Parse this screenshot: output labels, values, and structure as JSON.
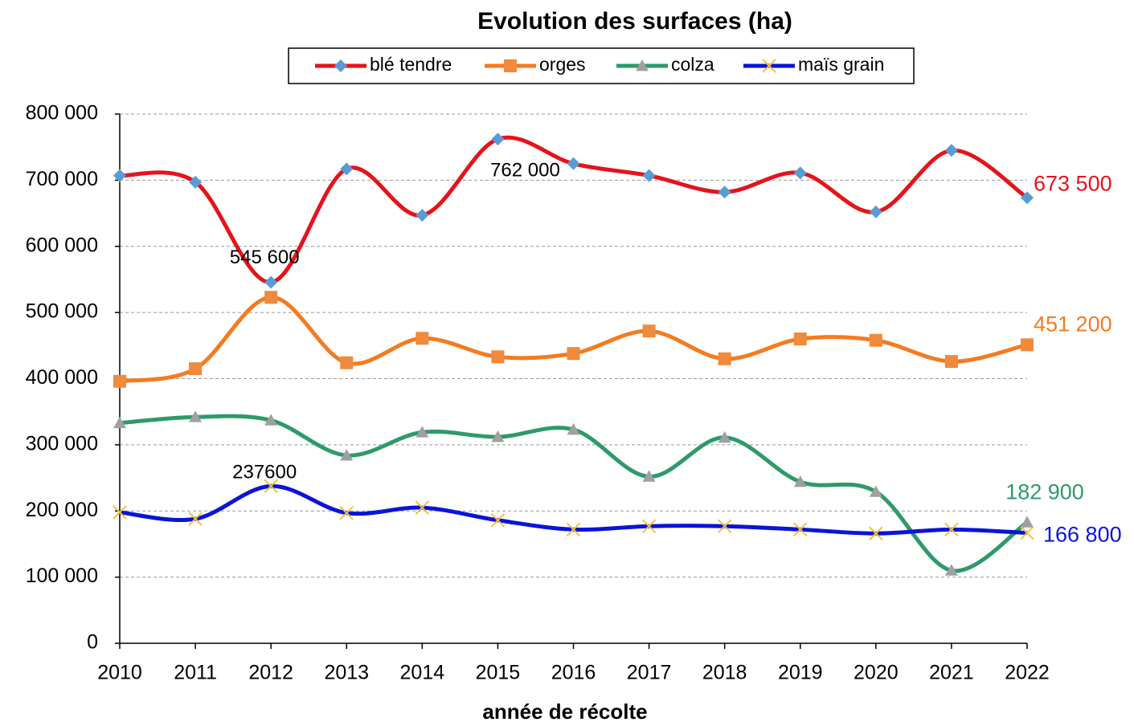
{
  "chart_data": {
    "type": "line",
    "title": "Evolution des surfaces (ha)",
    "x_label": "année de récolte",
    "categories": [
      "2010",
      "2011",
      "2012",
      "2013",
      "2014",
      "2015",
      "2016",
      "2017",
      "2018",
      "2019",
      "2020",
      "2021",
      "2022"
    ],
    "ylim": [
      0,
      800000
    ],
    "yticks": [
      0,
      {
        "value": 100000,
        "label": "100 000"
      },
      {
        "value": 200000,
        "label": "200 000"
      },
      {
        "value": 300000,
        "label": "300 000"
      },
      {
        "value": 400000,
        "label": "400 000"
      },
      {
        "value": 500000,
        "label": "500 000"
      },
      {
        "value": 600000,
        "label": "600 000"
      },
      {
        "value": 700000,
        "label": "700 000"
      },
      {
        "value": 800000,
        "label": "800 000"
      }
    ],
    "grid": true,
    "smooth": true,
    "legend": "top",
    "series": [
      {
        "name": "blé tendre",
        "color": "#e5131b",
        "marker": "diamond",
        "marker_color": "#5b9bd5",
        "values": [
          707000,
          697000,
          545600,
          717000,
          647000,
          762000,
          725000,
          707000,
          682000,
          711000,
          652000,
          745000,
          673500
        ],
        "value_labels": [
          null,
          null,
          "545 600",
          null,
          null,
          "762 000",
          null,
          null,
          null,
          null,
          null,
          null,
          "673 500"
        ]
      },
      {
        "name": "orges",
        "color": "#f47b20",
        "marker": "square",
        "marker_color": "#f08a3c",
        "values": [
          396000,
          415000,
          523000,
          424000,
          461000,
          433000,
          438000,
          472000,
          430000,
          460000,
          458000,
          426000,
          451200
        ],
        "value_labels": [
          null,
          null,
          null,
          null,
          null,
          null,
          null,
          null,
          null,
          null,
          null,
          null,
          "451 200"
        ]
      },
      {
        "name": "colza",
        "color": "#2e9a6a",
        "marker": "triangle",
        "marker_color": "#a0a0a0",
        "values": [
          333000,
          342000,
          337000,
          284000,
          319000,
          312000,
          323000,
          252000,
          311000,
          244000,
          229000,
          110000,
          182900
        ],
        "value_labels": [
          null,
          null,
          null,
          null,
          null,
          null,
          null,
          null,
          null,
          null,
          null,
          null,
          "182 900"
        ]
      },
      {
        "name": "maïs grain",
        "color": "#0a14d8",
        "marker": "x",
        "marker_color": "#f0c040",
        "values": [
          198000,
          188000,
          237600,
          197000,
          205000,
          186000,
          172000,
          177000,
          177000,
          172000,
          166000,
          172000,
          166800
        ],
        "value_labels": [
          null,
          null,
          "237600",
          null,
          null,
          null,
          null,
          null,
          null,
          null,
          null,
          null,
          "166 800"
        ]
      }
    ]
  }
}
